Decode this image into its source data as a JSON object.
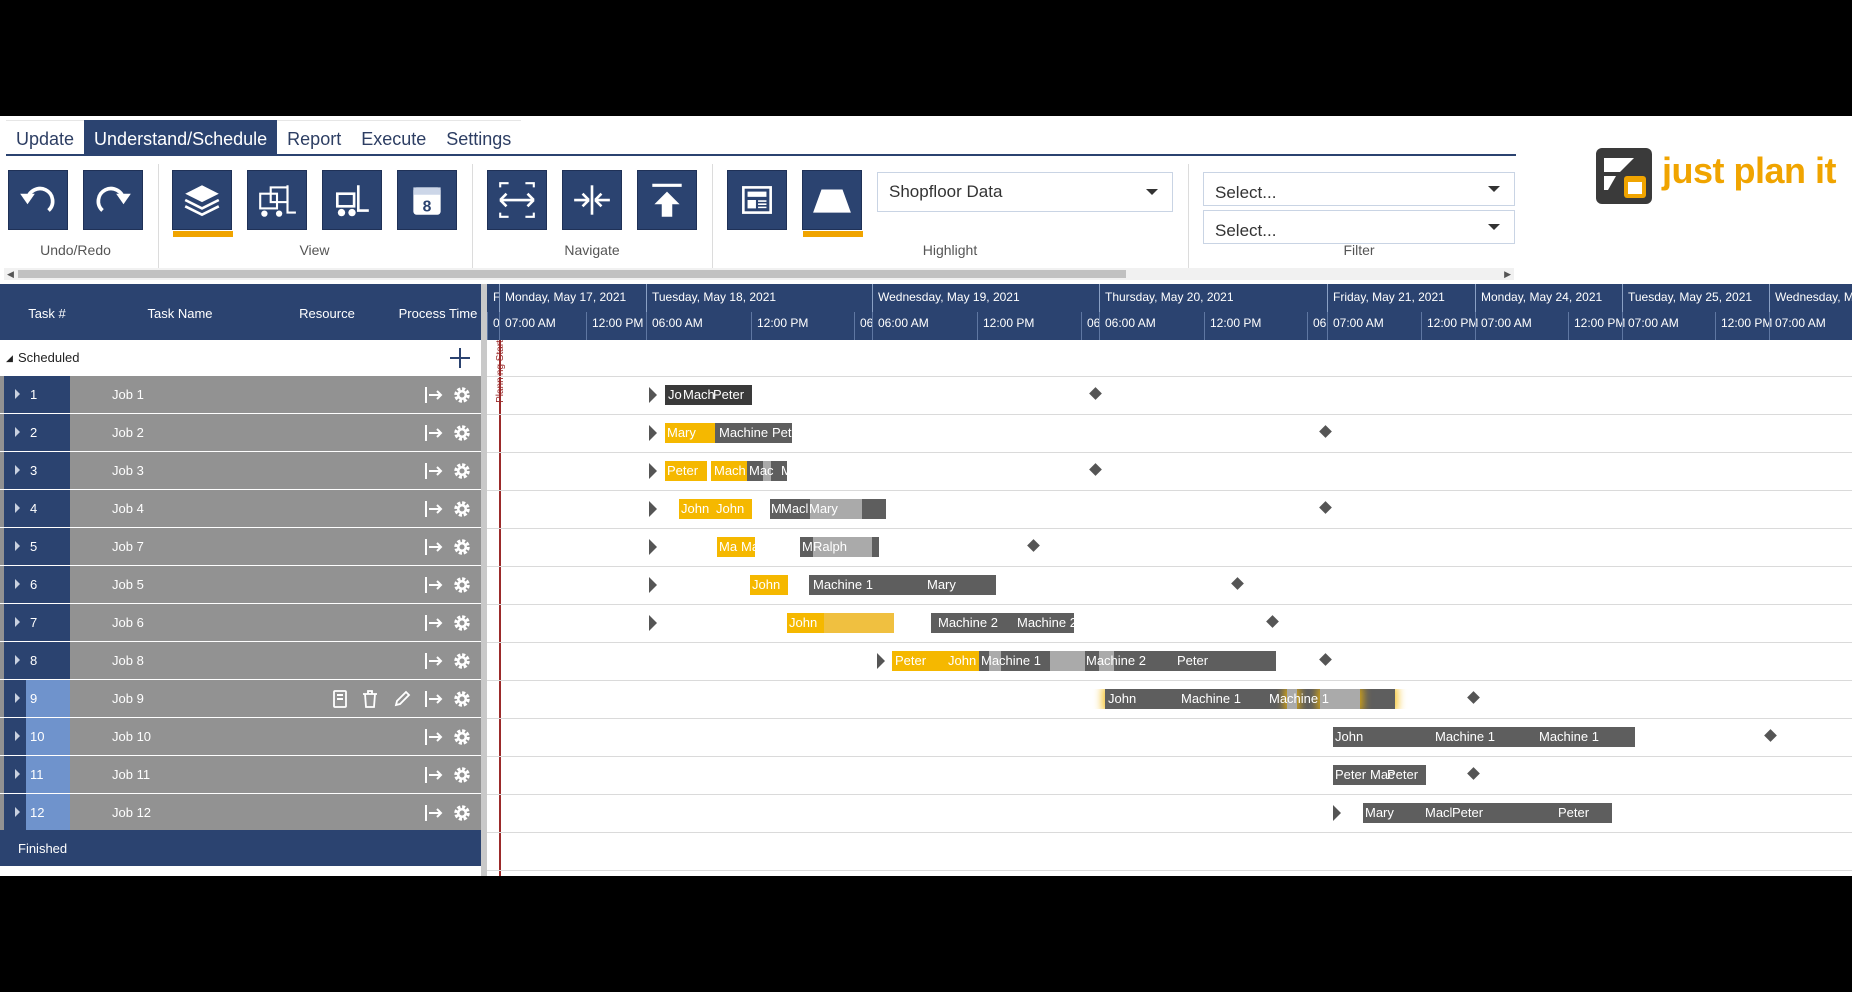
{
  "tabs": [
    "Update",
    "Understand/Schedule",
    "Report",
    "Execute",
    "Settings"
  ],
  "ribbon": {
    "groups": [
      "Undo/Redo",
      "View",
      "Navigate",
      "Highlight",
      "Filter"
    ],
    "highlight_select": "Shopfloor Data",
    "filter_select_1": "Select...",
    "filter_select_2": "Select..."
  },
  "logo": {
    "text": "just plan it"
  },
  "grid": {
    "headers": [
      "Task #",
      "Task Name",
      "Resource",
      "Process Time"
    ],
    "scheduled_label": "Scheduled",
    "finished_label": "Finished",
    "rows": [
      {
        "num": "1",
        "name": "Job 1"
      },
      {
        "num": "2",
        "name": "Job 2"
      },
      {
        "num": "3",
        "name": "Job 3"
      },
      {
        "num": "4",
        "name": "Job 4"
      },
      {
        "num": "5",
        "name": "Job 7"
      },
      {
        "num": "6",
        "name": "Job 5"
      },
      {
        "num": "7",
        "name": "Job 6"
      },
      {
        "num": "8",
        "name": "Job 8"
      },
      {
        "num": "9",
        "name": "Job 9"
      },
      {
        "num": "10",
        "name": "Job 10"
      },
      {
        "num": "11",
        "name": "Job 11"
      },
      {
        "num": "12",
        "name": "Job 12"
      }
    ]
  },
  "timeline": {
    "first_day_stub": "F",
    "planning_start_label": "Planning Start",
    "days": [
      {
        "label": "Monday, May 17, 2021"
      },
      {
        "label": "Tuesday, May 18, 2021"
      },
      {
        "label": "Wednesday, May 19, 2021"
      },
      {
        "label": "Thursday, May 20, 2021"
      },
      {
        "label": "Friday, May 21, 2021"
      },
      {
        "label": "Monday, May 24, 2021"
      },
      {
        "label": "Tuesday, May 25, 2021"
      },
      {
        "label": "Wednesday, May"
      }
    ],
    "hours": [
      "0",
      "07:00 AM",
      "12:00 PM",
      "06:00 AM",
      "12:00 PM",
      "06",
      "06:00 AM",
      "12:00 PM",
      "06",
      "06:00 AM",
      "12:00 PM",
      "06",
      "07:00 AM",
      "12:00 PM",
      "07:00 AM",
      "12:00 PM",
      "07:00 AM",
      "12:00 PM",
      "07:00 AM"
    ],
    "bar_labels": [
      [
        "Jo",
        "Mach",
        "Peter"
      ],
      [
        "Mary",
        "Machine",
        "Peter"
      ],
      [
        "Peter",
        "Mach",
        "Mac",
        "Mary"
      ],
      [
        "John",
        "John",
        "M",
        "Macl",
        "Mary"
      ],
      [
        "Ma",
        "Ma",
        "M",
        "Ralph"
      ],
      [
        "John",
        "Machine 1",
        "Mary"
      ],
      [
        "John",
        "Machine 2",
        "Machine 2"
      ],
      [
        "Peter",
        "John",
        "Machine 1",
        "Machine 2",
        "Peter"
      ],
      [
        "John",
        "Machine 1",
        "Machine 1"
      ],
      [
        "John",
        "Machine 1",
        "Machine 1"
      ],
      [
        "Peter",
        "Mac",
        "Peter"
      ],
      [
        "Mary",
        "Macl",
        "Peter",
        "Peter"
      ]
    ]
  },
  "colors": {
    "navy": "#2b4370",
    "accent": "#f0a400",
    "bar_yellow": "#f5b800",
    "bar_gray": "#5e5e5e"
  }
}
